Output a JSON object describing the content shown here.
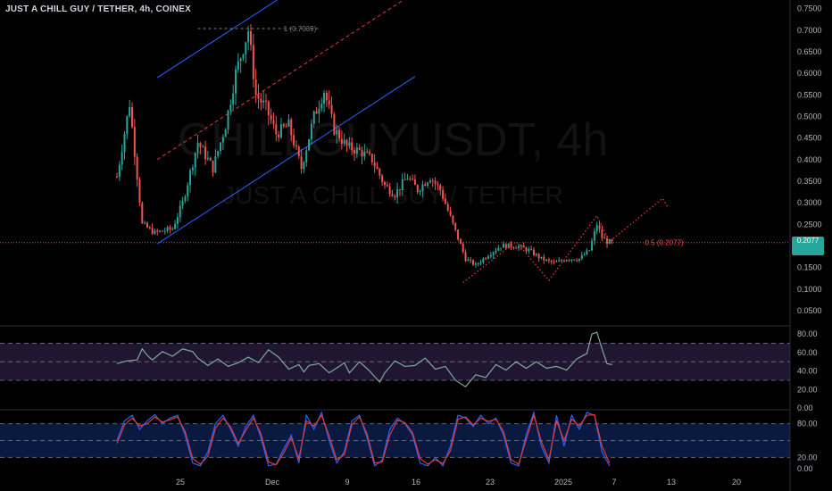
{
  "header": {
    "title": "JUST A CHILL GUY / TETHER, 4h, COINEX"
  },
  "watermark": {
    "line1": "CHILLGUYUSDT, 4h",
    "line2": "JUST A CHILL GUY / TETHER"
  },
  "price_tag": {
    "value": "0.2077",
    "time": ""
  },
  "colors": {
    "up": "#26a69a",
    "down": "#ef5350",
    "rsi": "#7fa89f",
    "stoch_k": "#2962ff",
    "stoch_d": "#e53935",
    "channel": "#2962ff",
    "channel_mid": "#e53935",
    "projection": "#e53935"
  },
  "chart_data": [
    {
      "type": "candlestick",
      "title": "JUST A CHILL GUY / TETHER, 4h, COINEX",
      "x_axis_ticks": [
        "25",
        "Dec",
        "9",
        "16",
        "23",
        "2025",
        "7",
        "13",
        "20"
      ],
      "y_axis_ticks": [
        0.75,
        0.7,
        0.65,
        0.6,
        0.55,
        0.5,
        0.45,
        0.4,
        0.35,
        0.3,
        0.25,
        0.2,
        0.15,
        0.1,
        0.05
      ],
      "y_tick_labels": [
        "0.7500",
        "0.7000",
        "0.6500",
        "0.6000",
        "0.5500",
        "0.5000",
        "0.4500",
        "0.4000",
        "0.3500",
        "0.3000",
        "0.2500",
        "0.2000",
        "0.1500",
        "0.1000",
        "0.0500"
      ],
      "ylim": [
        0.025,
        0.77
      ],
      "last_price": 0.2077,
      "fib_levels": [
        {
          "label": "1 (0.7039)",
          "value": 0.7039
        },
        {
          "label": "0.5 (0.2077)",
          "value": 0.2077
        }
      ],
      "price_path": [
        [
          0,
          0.36
        ],
        [
          5,
          0.53
        ],
        [
          10,
          0.25
        ],
        [
          15,
          0.23
        ],
        [
          22,
          0.24
        ],
        [
          26,
          0.3
        ],
        [
          32,
          0.44
        ],
        [
          38,
          0.38
        ],
        [
          43,
          0.48
        ],
        [
          47,
          0.6
        ],
        [
          52,
          0.7
        ],
        [
          55,
          0.55
        ],
        [
          59,
          0.52
        ],
        [
          63,
          0.46
        ],
        [
          68,
          0.48
        ],
        [
          73,
          0.38
        ],
        [
          78,
          0.5
        ],
        [
          82,
          0.56
        ],
        [
          86,
          0.47
        ],
        [
          91,
          0.43
        ],
        [
          96,
          0.42
        ],
        [
          101,
          0.4
        ],
        [
          106,
          0.34
        ],
        [
          110,
          0.32
        ],
        [
          115,
          0.36
        ],
        [
          119,
          0.33
        ],
        [
          124,
          0.36
        ],
        [
          128,
          0.33
        ],
        [
          133,
          0.25
        ],
        [
          138,
          0.17
        ],
        [
          142,
          0.155
        ],
        [
          147,
          0.18
        ],
        [
          152,
          0.2
        ],
        [
          158,
          0.2
        ],
        [
          163,
          0.19
        ],
        [
          168,
          0.17
        ],
        [
          173,
          0.16
        ],
        [
          178,
          0.17
        ],
        [
          183,
          0.17
        ],
        [
          187,
          0.19
        ],
        [
          190,
          0.25
        ],
        [
          192,
          0.22
        ],
        [
          194,
          0.21
        ],
        [
          196,
          0.207
        ]
      ],
      "channel": {
        "low_start": [
          0,
          0.205
        ],
        "high_start": [
          0,
          0.59
        ],
        "mid_start": [
          0,
          0.4
        ],
        "slope": 0.0095
      },
      "projection_path": [
        [
          137,
          0.115
        ],
        [
          158,
          0.21
        ],
        [
          171,
          0.12
        ],
        [
          190,
          0.27
        ],
        [
          195,
          0.21
        ],
        [
          216,
          0.31
        ],
        [
          218,
          0.29
        ]
      ]
    },
    {
      "type": "line",
      "title": "RSI",
      "y_axis_ticks": [
        80,
        60,
        40,
        20,
        0
      ],
      "y_tick_labels": [
        "80.00",
        "60.00",
        "40.00",
        "20.00",
        "0.00"
      ],
      "bands": [
        70,
        50,
        30
      ],
      "ylim": [
        0,
        86
      ],
      "values": [
        [
          0,
          48
        ],
        [
          4,
          51
        ],
        [
          8,
          52
        ],
        [
          10,
          64
        ],
        [
          12,
          57
        ],
        [
          14,
          52
        ],
        [
          18,
          61
        ],
        [
          22,
          56
        ],
        [
          26,
          64
        ],
        [
          30,
          61
        ],
        [
          32,
          54
        ],
        [
          36,
          46
        ],
        [
          40,
          53
        ],
        [
          44,
          45
        ],
        [
          48,
          49
        ],
        [
          52,
          55
        ],
        [
          56,
          49
        ],
        [
          60,
          63
        ],
        [
          64,
          55
        ],
        [
          68,
          42
        ],
        [
          72,
          47
        ],
        [
          74,
          39
        ],
        [
          76,
          46
        ],
        [
          80,
          48
        ],
        [
          84,
          38
        ],
        [
          88,
          45
        ],
        [
          90,
          49
        ],
        [
          92,
          38
        ],
        [
          96,
          50
        ],
        [
          100,
          40
        ],
        [
          104,
          28
        ],
        [
          106,
          38
        ],
        [
          110,
          51
        ],
        [
          114,
          45
        ],
        [
          118,
          46
        ],
        [
          122,
          54
        ],
        [
          126,
          42
        ],
        [
          130,
          45
        ],
        [
          134,
          30
        ],
        [
          138,
          23
        ],
        [
          142,
          36
        ],
        [
          146,
          33
        ],
        [
          150,
          47
        ],
        [
          154,
          41
        ],
        [
          158,
          50
        ],
        [
          162,
          43
        ],
        [
          166,
          50
        ],
        [
          170,
          43
        ],
        [
          174,
          45
        ],
        [
          178,
          41
        ],
        [
          182,
          53
        ],
        [
          186,
          59
        ],
        [
          188,
          80
        ],
        [
          190,
          82
        ],
        [
          192,
          64
        ],
        [
          194,
          48
        ],
        [
          196,
          47
        ]
      ]
    },
    {
      "type": "line",
      "title": "Stochastic",
      "y_axis_ticks": [
        80,
        20,
        0
      ],
      "y_tick_labels": [
        "80.00",
        "20.00",
        "0.00"
      ],
      "bands": [
        80,
        50,
        20
      ],
      "ylim": [
        0,
        100
      ],
      "series": [
        {
          "values": [
            [
              0,
              50
            ],
            [
              3,
              85
            ],
            [
              6,
              95
            ],
            [
              9,
              70
            ],
            [
              12,
              85
            ],
            [
              15,
              96
            ],
            [
              18,
              80
            ],
            [
              21,
              90
            ],
            [
              24,
              95
            ],
            [
              27,
              60
            ],
            [
              30,
              10
            ],
            [
              33,
              5
            ],
            [
              36,
              30
            ],
            [
              39,
              80
            ],
            [
              42,
              95
            ],
            [
              45,
              70
            ],
            [
              48,
              40
            ],
            [
              51,
              75
            ],
            [
              54,
              95
            ],
            [
              57,
              55
            ],
            [
              60,
              5
            ],
            [
              63,
              8
            ],
            [
              66,
              35
            ],
            [
              69,
              60
            ],
            [
              72,
              10
            ],
            [
              75,
              95
            ],
            [
              78,
              70
            ],
            [
              81,
              100
            ],
            [
              84,
              50
            ],
            [
              87,
              10
            ],
            [
              90,
              30
            ],
            [
              93,
              85
            ],
            [
              96,
              95
            ],
            [
              99,
              55
            ],
            [
              102,
              5
            ],
            [
              105,
              15
            ],
            [
              108,
              70
            ],
            [
              111,
              90
            ],
            [
              114,
              80
            ],
            [
              117,
              60
            ],
            [
              120,
              10
            ],
            [
              123,
              5
            ],
            [
              126,
              20
            ],
            [
              129,
              5
            ],
            [
              132,
              40
            ],
            [
              135,
              95
            ],
            [
              138,
              90
            ],
            [
              141,
              75
            ],
            [
              144,
              95
            ],
            [
              147,
              80
            ],
            [
              150,
              90
            ],
            [
              153,
              60
            ],
            [
              156,
              10
            ],
            [
              159,
              5
            ],
            [
              162,
              60
            ],
            [
              165,
              100
            ],
            [
              168,
              40
            ],
            [
              171,
              10
            ],
            [
              174,
              95
            ],
            [
              177,
              40
            ],
            [
              180,
              95
            ],
            [
              183,
              70
            ],
            [
              186,
              100
            ],
            [
              189,
              95
            ],
            [
              192,
              30
            ],
            [
              195,
              5
            ]
          ]
        },
        {
          "values": [
            [
              0,
              45
            ],
            [
              3,
              78
            ],
            [
              6,
              90
            ],
            [
              9,
              76
            ],
            [
              12,
              80
            ],
            [
              15,
              92
            ],
            [
              18,
              83
            ],
            [
              21,
              87
            ],
            [
              24,
              92
            ],
            [
              27,
              66
            ],
            [
              30,
              18
            ],
            [
              33,
              8
            ],
            [
              36,
              22
            ],
            [
              39,
              72
            ],
            [
              42,
              90
            ],
            [
              45,
              74
            ],
            [
              48,
              45
            ],
            [
              51,
              68
            ],
            [
              54,
              90
            ],
            [
              57,
              62
            ],
            [
              60,
              12
            ],
            [
              63,
              7
            ],
            [
              66,
              28
            ],
            [
              69,
              55
            ],
            [
              72,
              18
            ],
            [
              75,
              85
            ],
            [
              78,
              76
            ],
            [
              81,
              95
            ],
            [
              84,
              58
            ],
            [
              87,
              16
            ],
            [
              90,
              25
            ],
            [
              93,
              78
            ],
            [
              96,
              92
            ],
            [
              99,
              62
            ],
            [
              102,
              10
            ],
            [
              105,
              12
            ],
            [
              108,
              60
            ],
            [
              111,
              86
            ],
            [
              114,
              82
            ],
            [
              117,
              64
            ],
            [
              120,
              18
            ],
            [
              123,
              8
            ],
            [
              126,
              16
            ],
            [
              129,
              9
            ],
            [
              132,
              32
            ],
            [
              135,
              88
            ],
            [
              138,
              92
            ],
            [
              141,
              78
            ],
            [
              144,
              90
            ],
            [
              147,
              84
            ],
            [
              150,
              88
            ],
            [
              153,
              66
            ],
            [
              156,
              16
            ],
            [
              159,
              8
            ],
            [
              162,
              52
            ],
            [
              165,
              95
            ],
            [
              168,
              48
            ],
            [
              171,
              16
            ],
            [
              174,
              85
            ],
            [
              177,
              50
            ],
            [
              180,
              88
            ],
            [
              183,
              76
            ],
            [
              186,
              95
            ],
            [
              189,
              96
            ],
            [
              192,
              40
            ],
            [
              195,
              10
            ]
          ]
        }
      ]
    }
  ]
}
